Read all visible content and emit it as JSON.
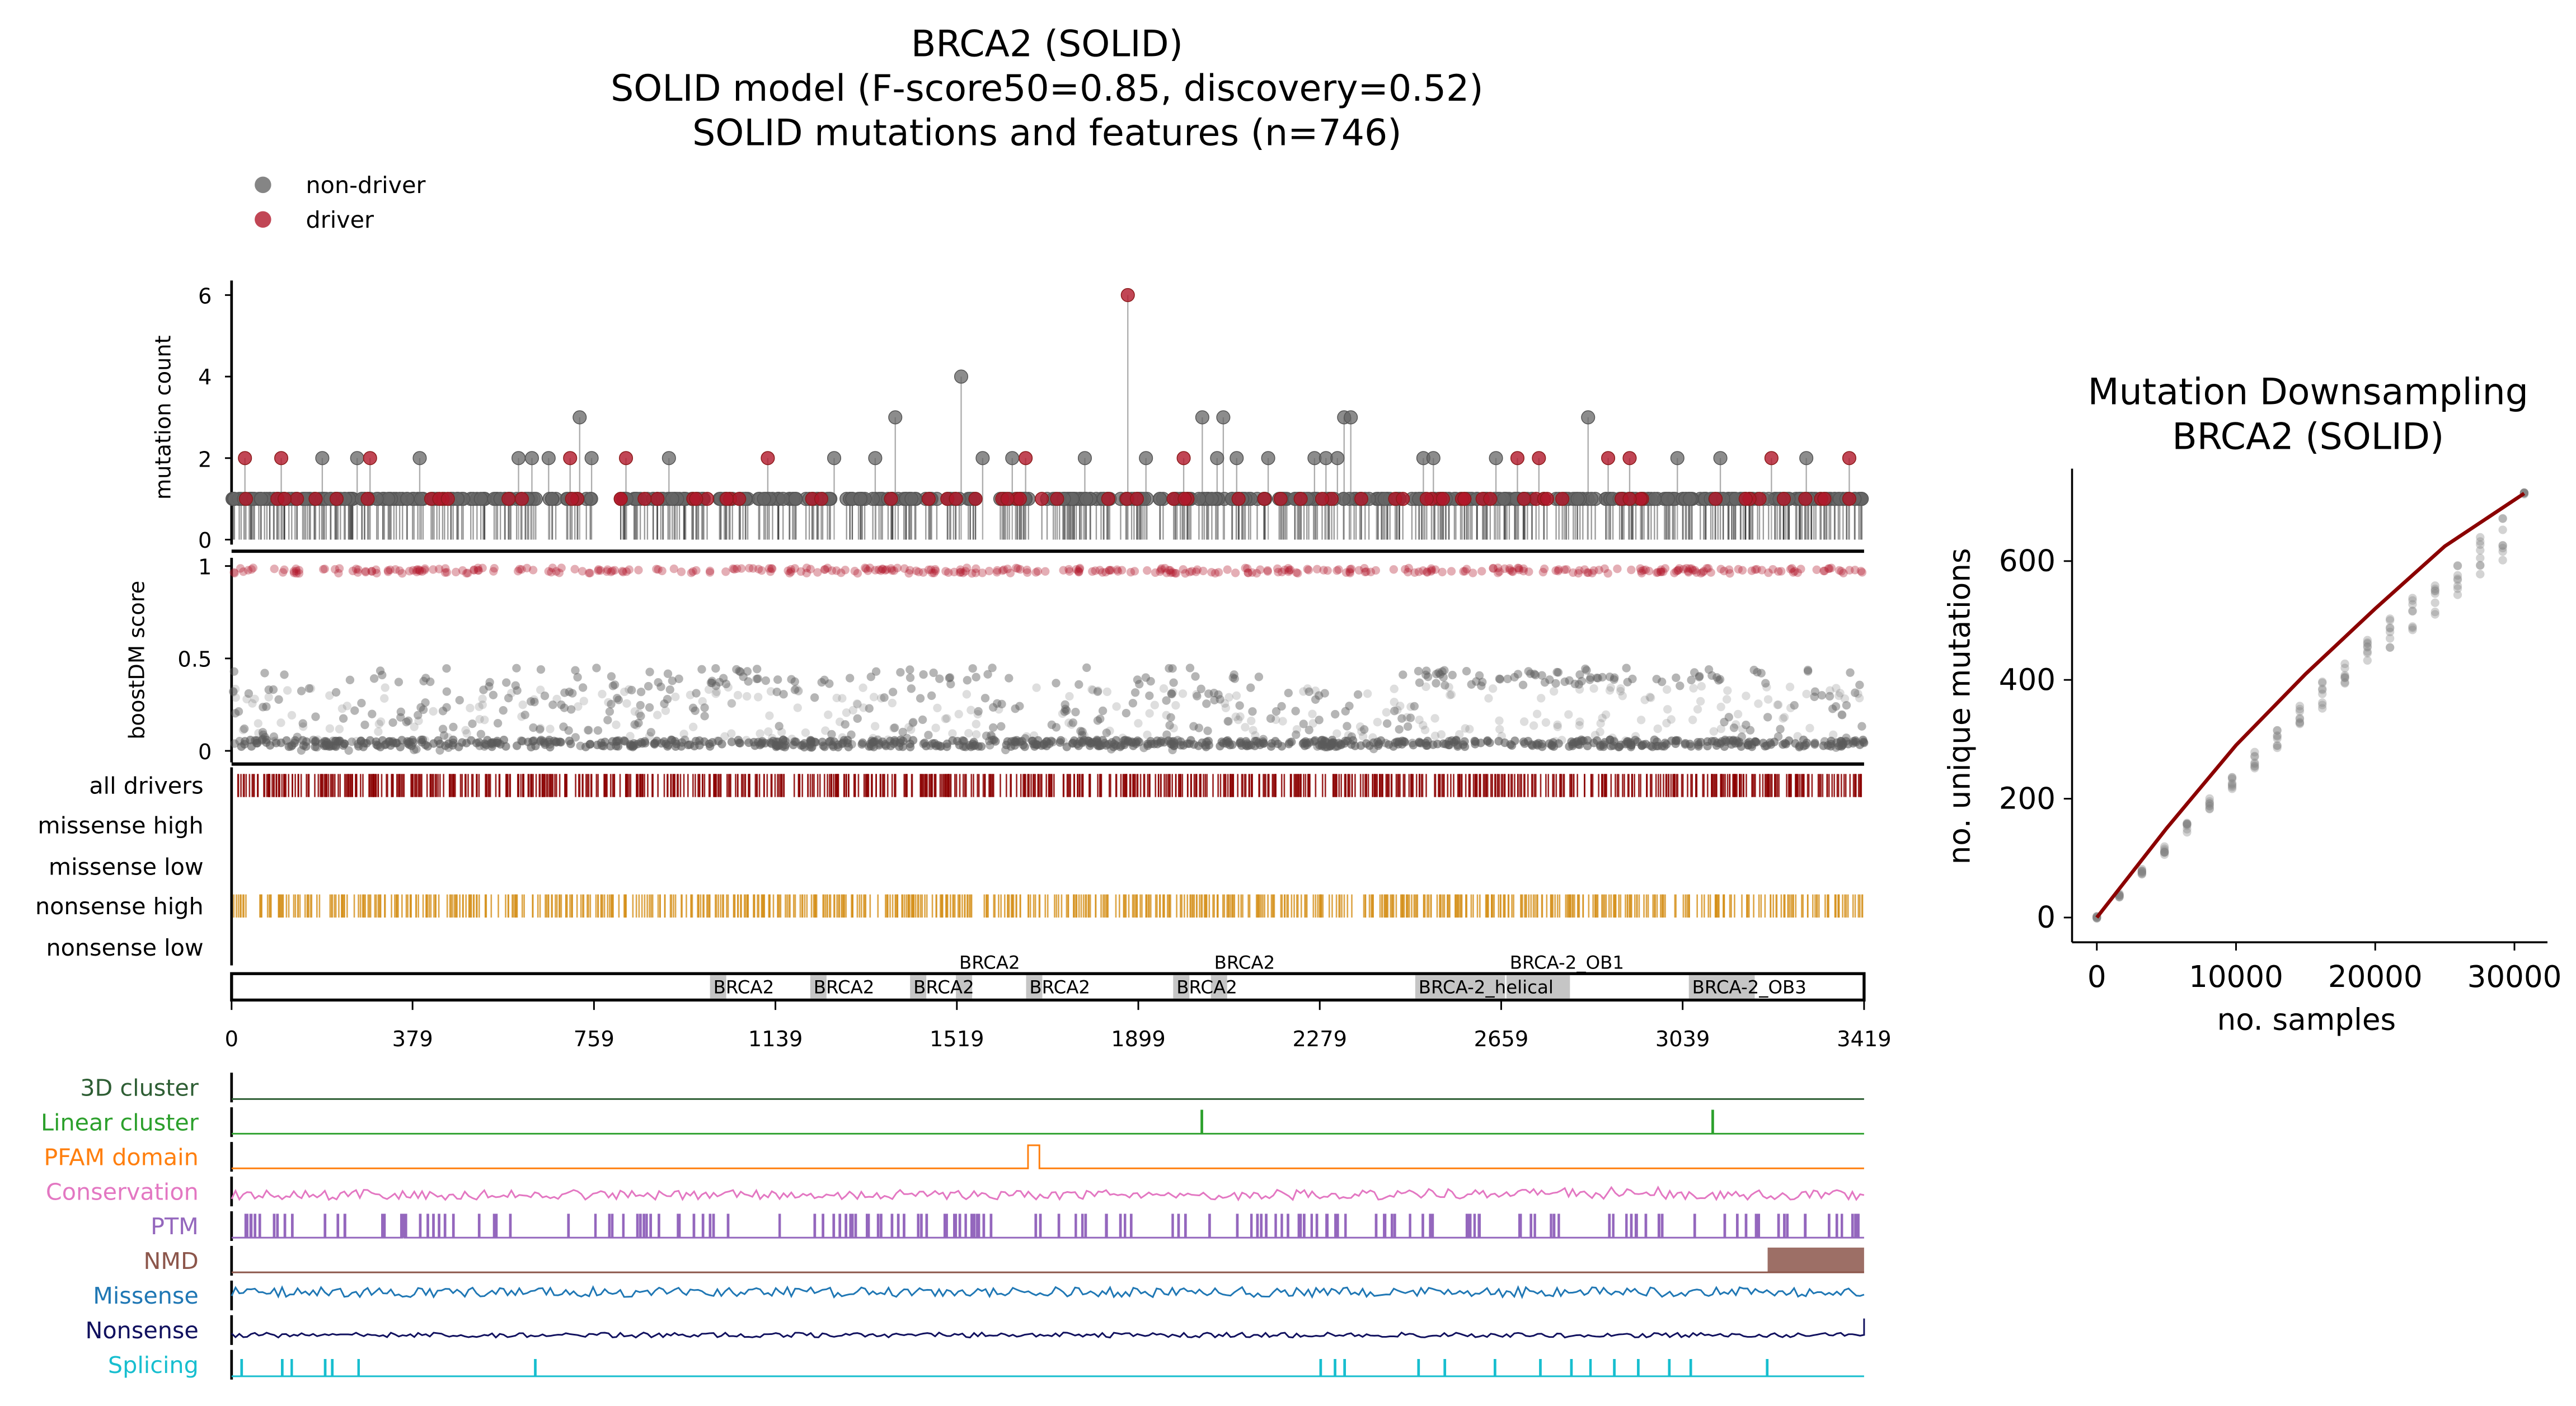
{
  "title_lines": [
    "BRCA2 (SOLID)",
    "SOLID model (F-score50=0.85, discovery=0.52)",
    "SOLID mutations and features (n=746)"
  ],
  "legend": [
    {
      "label": "non-driver",
      "color": "#666666"
    },
    {
      "label": "driver",
      "color": "#b2182b"
    }
  ],
  "colors": {
    "driver": "#b2182b",
    "nondriver": "#5a5a5a",
    "all_drivers": "#8b0000",
    "nonsense_high": "#d4901a",
    "domain": "#bfbfbf",
    "curve": "#8b0000"
  },
  "chart_data": [
    {
      "type": "scatter",
      "panel": "lollipop",
      "ylabel": "mutation count",
      "yticks": [
        "0",
        "2",
        "4",
        "6"
      ],
      "xlim": [
        0,
        3419
      ],
      "ylim": [
        0,
        6
      ],
      "n_mutations": 746,
      "peaks": [
        {
          "pos": 28,
          "count": 2,
          "driver": true
        },
        {
          "pos": 104,
          "count": 2,
          "driver": true
        },
        {
          "pos": 190,
          "count": 2,
          "driver": false
        },
        {
          "pos": 263,
          "count": 2,
          "driver": false
        },
        {
          "pos": 290,
          "count": 2,
          "driver": true
        },
        {
          "pos": 394,
          "count": 2,
          "driver": false
        },
        {
          "pos": 601,
          "count": 2,
          "driver": false
        },
        {
          "pos": 629,
          "count": 2,
          "driver": false
        },
        {
          "pos": 664,
          "count": 2,
          "driver": false
        },
        {
          "pos": 709,
          "count": 2,
          "driver": true
        },
        {
          "pos": 729,
          "count": 3,
          "driver": false
        },
        {
          "pos": 754,
          "count": 2,
          "driver": false
        },
        {
          "pos": 826,
          "count": 2,
          "driver": true
        },
        {
          "pos": 916,
          "count": 2,
          "driver": false
        },
        {
          "pos": 1123,
          "count": 2,
          "driver": true
        },
        {
          "pos": 1262,
          "count": 2,
          "driver": false
        },
        {
          "pos": 1348,
          "count": 2,
          "driver": false
        },
        {
          "pos": 1390,
          "count": 3,
          "driver": false
        },
        {
          "pos": 1528,
          "count": 4,
          "driver": false
        },
        {
          "pos": 1573,
          "count": 2,
          "driver": false
        },
        {
          "pos": 1635,
          "count": 2,
          "driver": false
        },
        {
          "pos": 1663,
          "count": 2,
          "driver": true
        },
        {
          "pos": 1787,
          "count": 2,
          "driver": false
        },
        {
          "pos": 1877,
          "count": 6,
          "driver": true
        },
        {
          "pos": 1915,
          "count": 2,
          "driver": false
        },
        {
          "pos": 1994,
          "count": 2,
          "driver": true
        },
        {
          "pos": 2033,
          "count": 3,
          "driver": false
        },
        {
          "pos": 2064,
          "count": 2,
          "driver": false
        },
        {
          "pos": 2077,
          "count": 3,
          "driver": false
        },
        {
          "pos": 2105,
          "count": 2,
          "driver": false
        },
        {
          "pos": 2171,
          "count": 2,
          "driver": false
        },
        {
          "pos": 2268,
          "count": 2,
          "driver": false
        },
        {
          "pos": 2292,
          "count": 2,
          "driver": false
        },
        {
          "pos": 2316,
          "count": 2,
          "driver": false
        },
        {
          "pos": 2330,
          "count": 3,
          "driver": false
        },
        {
          "pos": 2344,
          "count": 3,
          "driver": false
        },
        {
          "pos": 2496,
          "count": 2,
          "driver": false
        },
        {
          "pos": 2517,
          "count": 2,
          "driver": false
        },
        {
          "pos": 2648,
          "count": 2,
          "driver": false
        },
        {
          "pos": 2693,
          "count": 2,
          "driver": true
        },
        {
          "pos": 2738,
          "count": 2,
          "driver": true
        },
        {
          "pos": 2841,
          "count": 3,
          "driver": false
        },
        {
          "pos": 2883,
          "count": 2,
          "driver": true
        },
        {
          "pos": 2928,
          "count": 2,
          "driver": true
        },
        {
          "pos": 3028,
          "count": 2,
          "driver": false
        },
        {
          "pos": 3118,
          "count": 2,
          "driver": false
        },
        {
          "pos": 3225,
          "count": 2,
          "driver": true
        },
        {
          "pos": 3298,
          "count": 2,
          "driver": false
        },
        {
          "pos": 3388,
          "count": 2,
          "driver": true
        }
      ]
    },
    {
      "type": "scatter",
      "panel": "boostdm",
      "ylabel": "boostDM score",
      "yticks": [
        "0",
        "0.5",
        "1"
      ],
      "ylim": [
        0,
        1
      ]
    },
    {
      "type": "table",
      "panel": "in-silico saturation tracks",
      "rows": [
        "all drivers",
        "missense high",
        "missense low",
        "nonsense high",
        "nonsense low"
      ]
    },
    {
      "type": "bar",
      "panel": "domains",
      "domains": [
        {
          "name": "BRCA2",
          "start": 1002,
          "end": 1036
        },
        {
          "name": "BRCA2",
          "start": 1212,
          "end": 1246
        },
        {
          "name": "BRCA2",
          "start": 1421,
          "end": 1455
        },
        {
          "name": "BRCA2",
          "start": 1517,
          "end": 1551
        },
        {
          "name": "BRCA2",
          "start": 1664,
          "end": 1698
        },
        {
          "name": "BRCA2",
          "start": 1972,
          "end": 2006
        },
        {
          "name": "BRCA2",
          "start": 2051,
          "end": 2085
        },
        {
          "name": "BRCA-2_helical",
          "start": 2479,
          "end": 2667
        },
        {
          "name": "BRCA-2_OB1",
          "start": 2670,
          "end": 2803
        },
        {
          "name": "BRCA-2_OB3",
          "start": 3052,
          "end": 3190
        }
      ],
      "xticks": [
        "0",
        "379",
        "759",
        "1139",
        "1519",
        "1899",
        "2279",
        "2659",
        "3039",
        "3419"
      ]
    },
    {
      "type": "line",
      "panel": "features",
      "tracks": [
        {
          "label": "3D cluster",
          "color": "#2e5e34"
        },
        {
          "label": "Linear cluster",
          "color": "#2ca02c",
          "spikes": [
            2031,
            3101
          ]
        },
        {
          "label": "PFAM domain",
          "color": "#ff7f0e",
          "bumps": [
            [
              1668,
              1692
            ]
          ]
        },
        {
          "label": "Conservation",
          "color": "#e377c2"
        },
        {
          "label": "PTM",
          "color": "#9467bd"
        },
        {
          "label": "NMD",
          "color": "#8c564b",
          "region": [
            3217,
            3419
          ]
        },
        {
          "label": "Missense",
          "color": "#1f77b4"
        },
        {
          "label": "Nonsense",
          "color": "#10105e"
        },
        {
          "label": "Splicing",
          "color": "#17becf",
          "spikes": [
            20,
            105,
            125,
            195,
            210,
            265,
            635,
            2280,
            2310,
            2330,
            2485,
            2540,
            2645,
            2740,
            2805,
            2845,
            2895,
            2945,
            3010,
            3055,
            3215
          ]
        }
      ]
    },
    {
      "type": "scatter",
      "panel": "downsampling",
      "title_lines": [
        "Mutation Downsampling",
        "BRCA2 (SOLID)"
      ],
      "xlabel": "no. samples",
      "ylabel": "no. unique mutations",
      "xticks": [
        "0",
        "10000",
        "20000",
        "30000"
      ],
      "yticks": [
        "0",
        "200",
        "400",
        "600"
      ],
      "x": [
        0,
        1620,
        3240,
        4860,
        6480,
        8100,
        9720,
        11340,
        12960,
        14580,
        16200,
        17820,
        19440,
        21060,
        22680,
        24300,
        25920,
        27540,
        29160,
        30700
      ],
      "y": [
        0,
        40,
        80,
        120,
        160,
        200,
        245,
        280,
        320,
        360,
        400,
        435,
        470,
        505,
        540,
        575,
        610,
        645,
        680,
        714
      ],
      "fit": [
        [
          0,
          0
        ],
        [
          5000,
          150
        ],
        [
          10000,
          290
        ],
        [
          15000,
          410
        ],
        [
          20000,
          520
        ],
        [
          25000,
          625
        ],
        [
          30700,
          714
        ]
      ]
    }
  ]
}
